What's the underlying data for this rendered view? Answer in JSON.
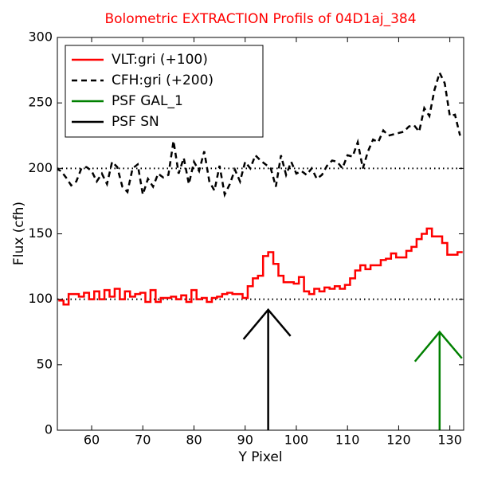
{
  "chart_data": {
    "type": "line",
    "title": "Bolometric EXTRACTION Profils of 04D1aj_384",
    "xlabel": "Y Pixel",
    "ylabel": "Flux (cfh)",
    "xlim": [
      53.3,
      132.7
    ],
    "ylim": [
      0,
      300
    ],
    "xticks": [
      60,
      70,
      80,
      90,
      100,
      110,
      120,
      130
    ],
    "yticks": [
      0,
      50,
      100,
      150,
      200,
      250,
      300
    ],
    "hlines": [
      100,
      200
    ],
    "legend": "upper left",
    "series": [
      {
        "name": "VLT:gri (+100)",
        "color": "#ff0000",
        "style": "steps",
        "x": [
          54,
          55,
          56,
          57,
          58,
          59,
          60,
          61,
          62,
          63,
          64,
          65,
          66,
          67,
          68,
          69,
          70,
          71,
          72,
          73,
          74,
          75,
          76,
          77,
          78,
          79,
          80,
          81,
          82,
          83,
          84,
          85,
          86,
          87,
          88,
          89,
          90,
          91,
          92,
          93,
          94,
          95,
          96,
          97,
          98,
          99,
          100,
          101,
          102,
          103,
          104,
          105,
          106,
          107,
          108,
          109,
          110,
          111,
          112,
          113,
          114,
          115,
          116,
          117,
          118,
          119,
          120,
          121,
          122,
          123,
          124,
          125,
          126,
          127,
          128,
          129,
          130,
          131,
          132
        ],
        "values": [
          99,
          96,
          104,
          104,
          102,
          105,
          100,
          106,
          100,
          107,
          102,
          108,
          100,
          106,
          102,
          104,
          105,
          98,
          107,
          98,
          101,
          101,
          102,
          100,
          103,
          98,
          107,
          100,
          101,
          98,
          101,
          102,
          104,
          105,
          104,
          104,
          101,
          110,
          116,
          118,
          133,
          136,
          127,
          118,
          113,
          113,
          112,
          117,
          106,
          104,
          108,
          106,
          109,
          108,
          110,
          108,
          111,
          116,
          122,
          126,
          123,
          126,
          126,
          130,
          131,
          135,
          132,
          132,
          137,
          140,
          146,
          150,
          154,
          148,
          148,
          143,
          134,
          134,
          136
        ]
      },
      {
        "name": "CFH:gri (+200)",
        "color": "#000000",
        "style": "dashed",
        "x": [
          53,
          54,
          55,
          56,
          57,
          58,
          59,
          60,
          61,
          62,
          63,
          64,
          65,
          66,
          67,
          68,
          69,
          70,
          71,
          72,
          73,
          74,
          75,
          76,
          77,
          78,
          79,
          80,
          81,
          82,
          83,
          84,
          85,
          86,
          87,
          88,
          89,
          90,
          91,
          92,
          93,
          94,
          95,
          96,
          97,
          98,
          99,
          100,
          101,
          102,
          103,
          104,
          105,
          106,
          107,
          108,
          109,
          110,
          111,
          112,
          113,
          114,
          115,
          116,
          117,
          118,
          119,
          120,
          121,
          122,
          123,
          124,
          125,
          126,
          127,
          128,
          129,
          130,
          131,
          132
        ],
        "values": [
          200,
          198,
          193,
          187,
          190,
          200,
          201,
          198,
          190,
          196,
          188,
          205,
          201,
          186,
          182,
          200,
          203,
          180,
          192,
          186,
          196,
          193,
          195,
          221,
          196,
          208,
          188,
          205,
          198,
          213,
          190,
          183,
          202,
          180,
          188,
          199,
          190,
          205,
          200,
          210,
          206,
          203,
          200,
          186,
          210,
          195,
          205,
          196,
          198,
          195,
          200,
          192,
          195,
          202,
          206,
          205,
          200,
          210,
          209,
          220,
          200,
          213,
          222,
          220,
          229,
          225,
          226,
          227,
          228,
          232,
          233,
          228,
          246,
          240,
          260,
          273,
          265,
          240,
          241,
          225
        ]
      },
      {
        "name": "PSF GAL_1",
        "color": "#008000",
        "style": "arrow",
        "x": [
          128,
          128
        ],
        "values": [
          0,
          75
        ]
      },
      {
        "name": "PSF SN",
        "color": "#000000",
        "style": "arrow",
        "x": [
          94.5,
          94.5
        ],
        "values": [
          0,
          92
        ]
      }
    ]
  }
}
